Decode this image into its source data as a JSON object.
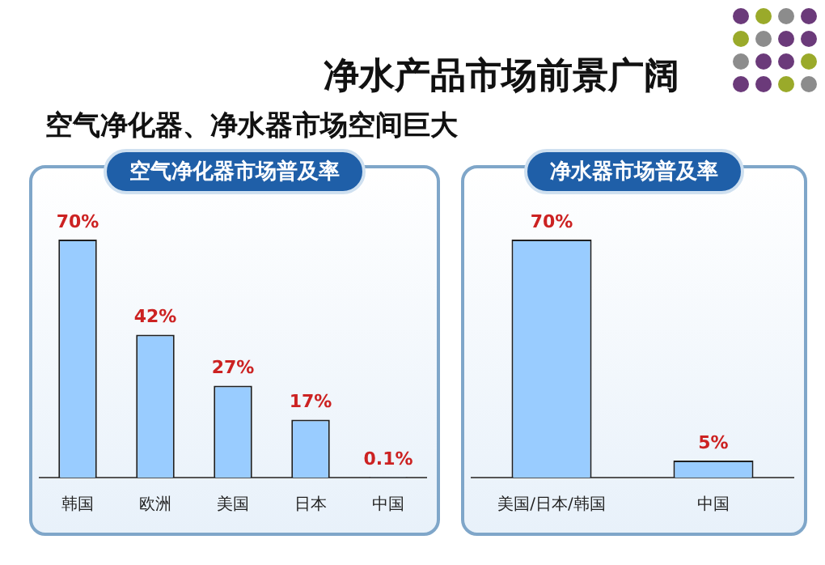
{
  "chart_data": [
    {
      "type": "other",
      "title": "净水产品市场前景广阔",
      "subtitle": "空气净化器、净水器市场空间巨大"
    },
    {
      "type": "bar",
      "title": "空气净化器市场普及率",
      "categories": [
        "韩国",
        "欧洲",
        "美国",
        "日本",
        "中国"
      ],
      "values": [
        70,
        42,
        27,
        17,
        0.1
      ],
      "value_labels": [
        "70%",
        "42%",
        "27%",
        "17%",
        "0.1%"
      ],
      "color": "#99ccff"
    },
    {
      "type": "bar",
      "title": "净水器市场普及率",
      "categories": [
        "美国/日本/韩国",
        "中国"
      ],
      "values": [
        70,
        5
      ],
      "value_labels": [
        "70%",
        "5%"
      ],
      "color": "#99ccff"
    }
  ]
}
